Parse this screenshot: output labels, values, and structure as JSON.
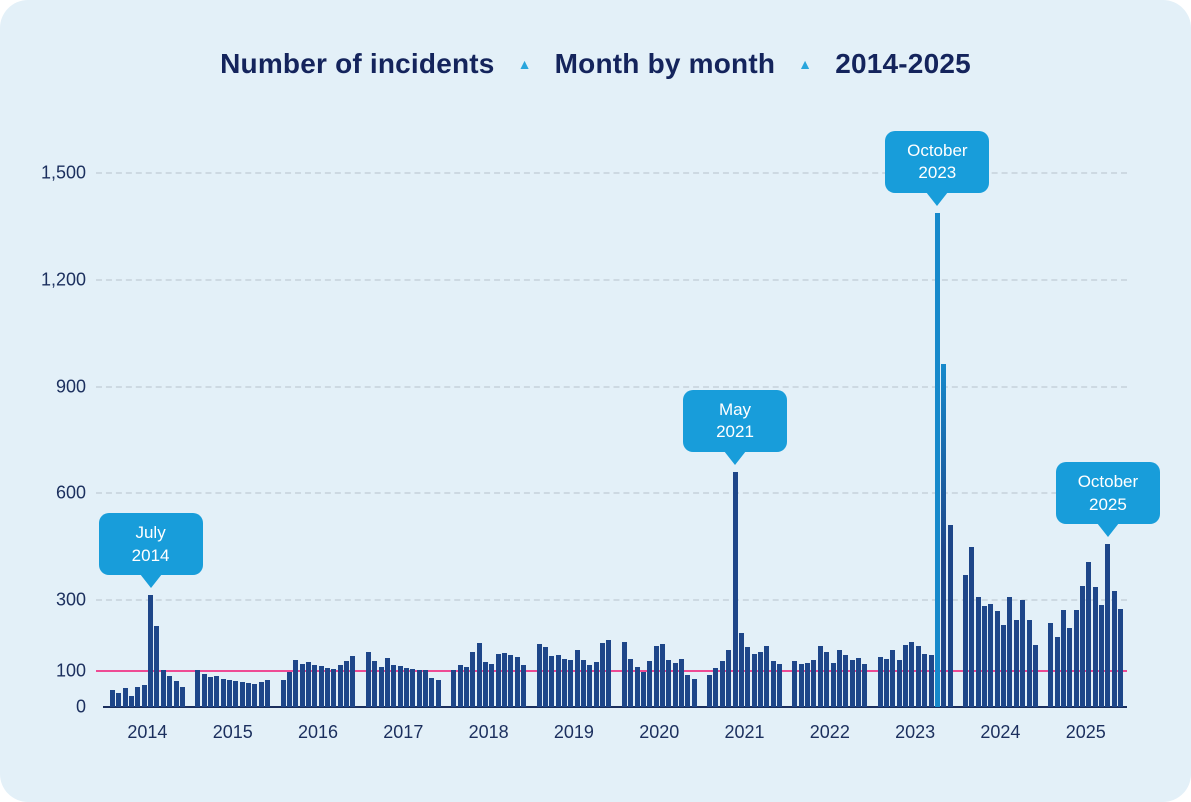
{
  "header": {
    "title_part1": "Number of incidents",
    "separator1": "▲",
    "title_part2": "Month by month",
    "separator2": "▲",
    "title_part3": "2014-2025"
  },
  "colors": {
    "background": "#e3f0f8",
    "bar_navy": "#1e4689",
    "highlight_bar_blue": "#1689cb",
    "callout_blue": "#189dda",
    "reference_line_pink": "#ee4b94",
    "title_navy": "#14245c",
    "axis_text_navy": "#1b2f5e",
    "gridline_gray": "#cdd9e2"
  },
  "chart_data": {
    "type": "bar",
    "title": "Number of incidents ▲ Month by month ▲ 2014-2025",
    "xlabel": "",
    "ylabel": "",
    "ylim": [
      0,
      1500
    ],
    "grid": "dashed horizontal at 300/600/900/1200/1500, solid pink reference at 100",
    "y_ticks": [
      0,
      100,
      300,
      600,
      900,
      1200,
      1500
    ],
    "y_tick_labels": [
      "0",
      "100",
      "300",
      "600",
      "900",
      "1,200",
      "1,500"
    ],
    "reference_line_value": 100,
    "months_per_year": 12,
    "years": [
      {
        "year": "2014",
        "values": [
          48,
          38,
          52,
          30,
          55,
          62,
          314,
          228,
          105,
          86,
          74,
          56
        ]
      },
      {
        "year": "2015",
        "values": [
          104,
          92,
          84,
          88,
          80,
          76,
          73,
          70,
          68,
          66,
          71,
          76
        ]
      },
      {
        "year": "2016",
        "values": [
          75,
          98,
          132,
          121,
          126,
          119,
          114,
          110,
          107,
          117,
          129,
          142
        ]
      },
      {
        "year": "2017",
        "values": [
          154,
          129,
          112,
          138,
          119,
          114,
          110,
          107,
          104,
          103,
          82,
          76
        ]
      },
      {
        "year": "2018",
        "values": [
          103,
          117,
          112,
          154,
          179,
          126,
          121,
          149,
          151,
          145,
          140,
          117
        ]
      },
      {
        "year": "2019",
        "values": [
          177,
          168,
          142,
          147,
          135,
          131,
          159,
          131,
          117,
          126,
          179,
          187
        ]
      },
      {
        "year": "2020",
        "values": [
          183,
          134,
          112,
          99,
          129,
          171,
          176,
          131,
          124,
          134,
          90,
          79
        ]
      },
      {
        "year": "2021",
        "values": [
          90,
          110,
          130,
          160,
          661,
          208,
          168,
          150,
          155,
          170,
          130,
          120
        ]
      },
      {
        "year": "2022",
        "values": [
          130,
          121,
          123,
          132,
          170,
          154,
          123,
          160,
          145,
          132,
          137,
          120
        ]
      },
      {
        "year": "2023",
        "values": [
          140,
          135,
          160,
          131,
          175,
          182,
          170,
          149,
          145,
          1389,
          964,
          510
        ]
      },
      {
        "year": "2024",
        "values": [
          370,
          450,
          310,
          285,
          290,
          270,
          230,
          310,
          245,
          300,
          245,
          175
        ]
      },
      {
        "year": "2025",
        "values": [
          235,
          196,
          272,
          222,
          272,
          341,
          408,
          336,
          286,
          457,
          327,
          275
        ]
      }
    ],
    "annotations": [
      {
        "line1": "July",
        "line2": "2014",
        "year": "2014",
        "month_index": 7,
        "value": 314
      },
      {
        "line1": "May",
        "line2": "2021",
        "year": "2021",
        "month_index": 5,
        "value": 661
      },
      {
        "line1": "October",
        "line2": "2023",
        "year": "2023",
        "month_index": 10,
        "value": 1389
      },
      {
        "line1": "October",
        "line2": "2025",
        "year": "2025",
        "month_index": 10,
        "value": 457
      }
    ],
    "highlighted_bar": {
      "year": "2023",
      "month_index": 10,
      "color": "#1689cb"
    },
    "gradient_bar": {
      "year": "2023",
      "month_index": 11
    }
  }
}
